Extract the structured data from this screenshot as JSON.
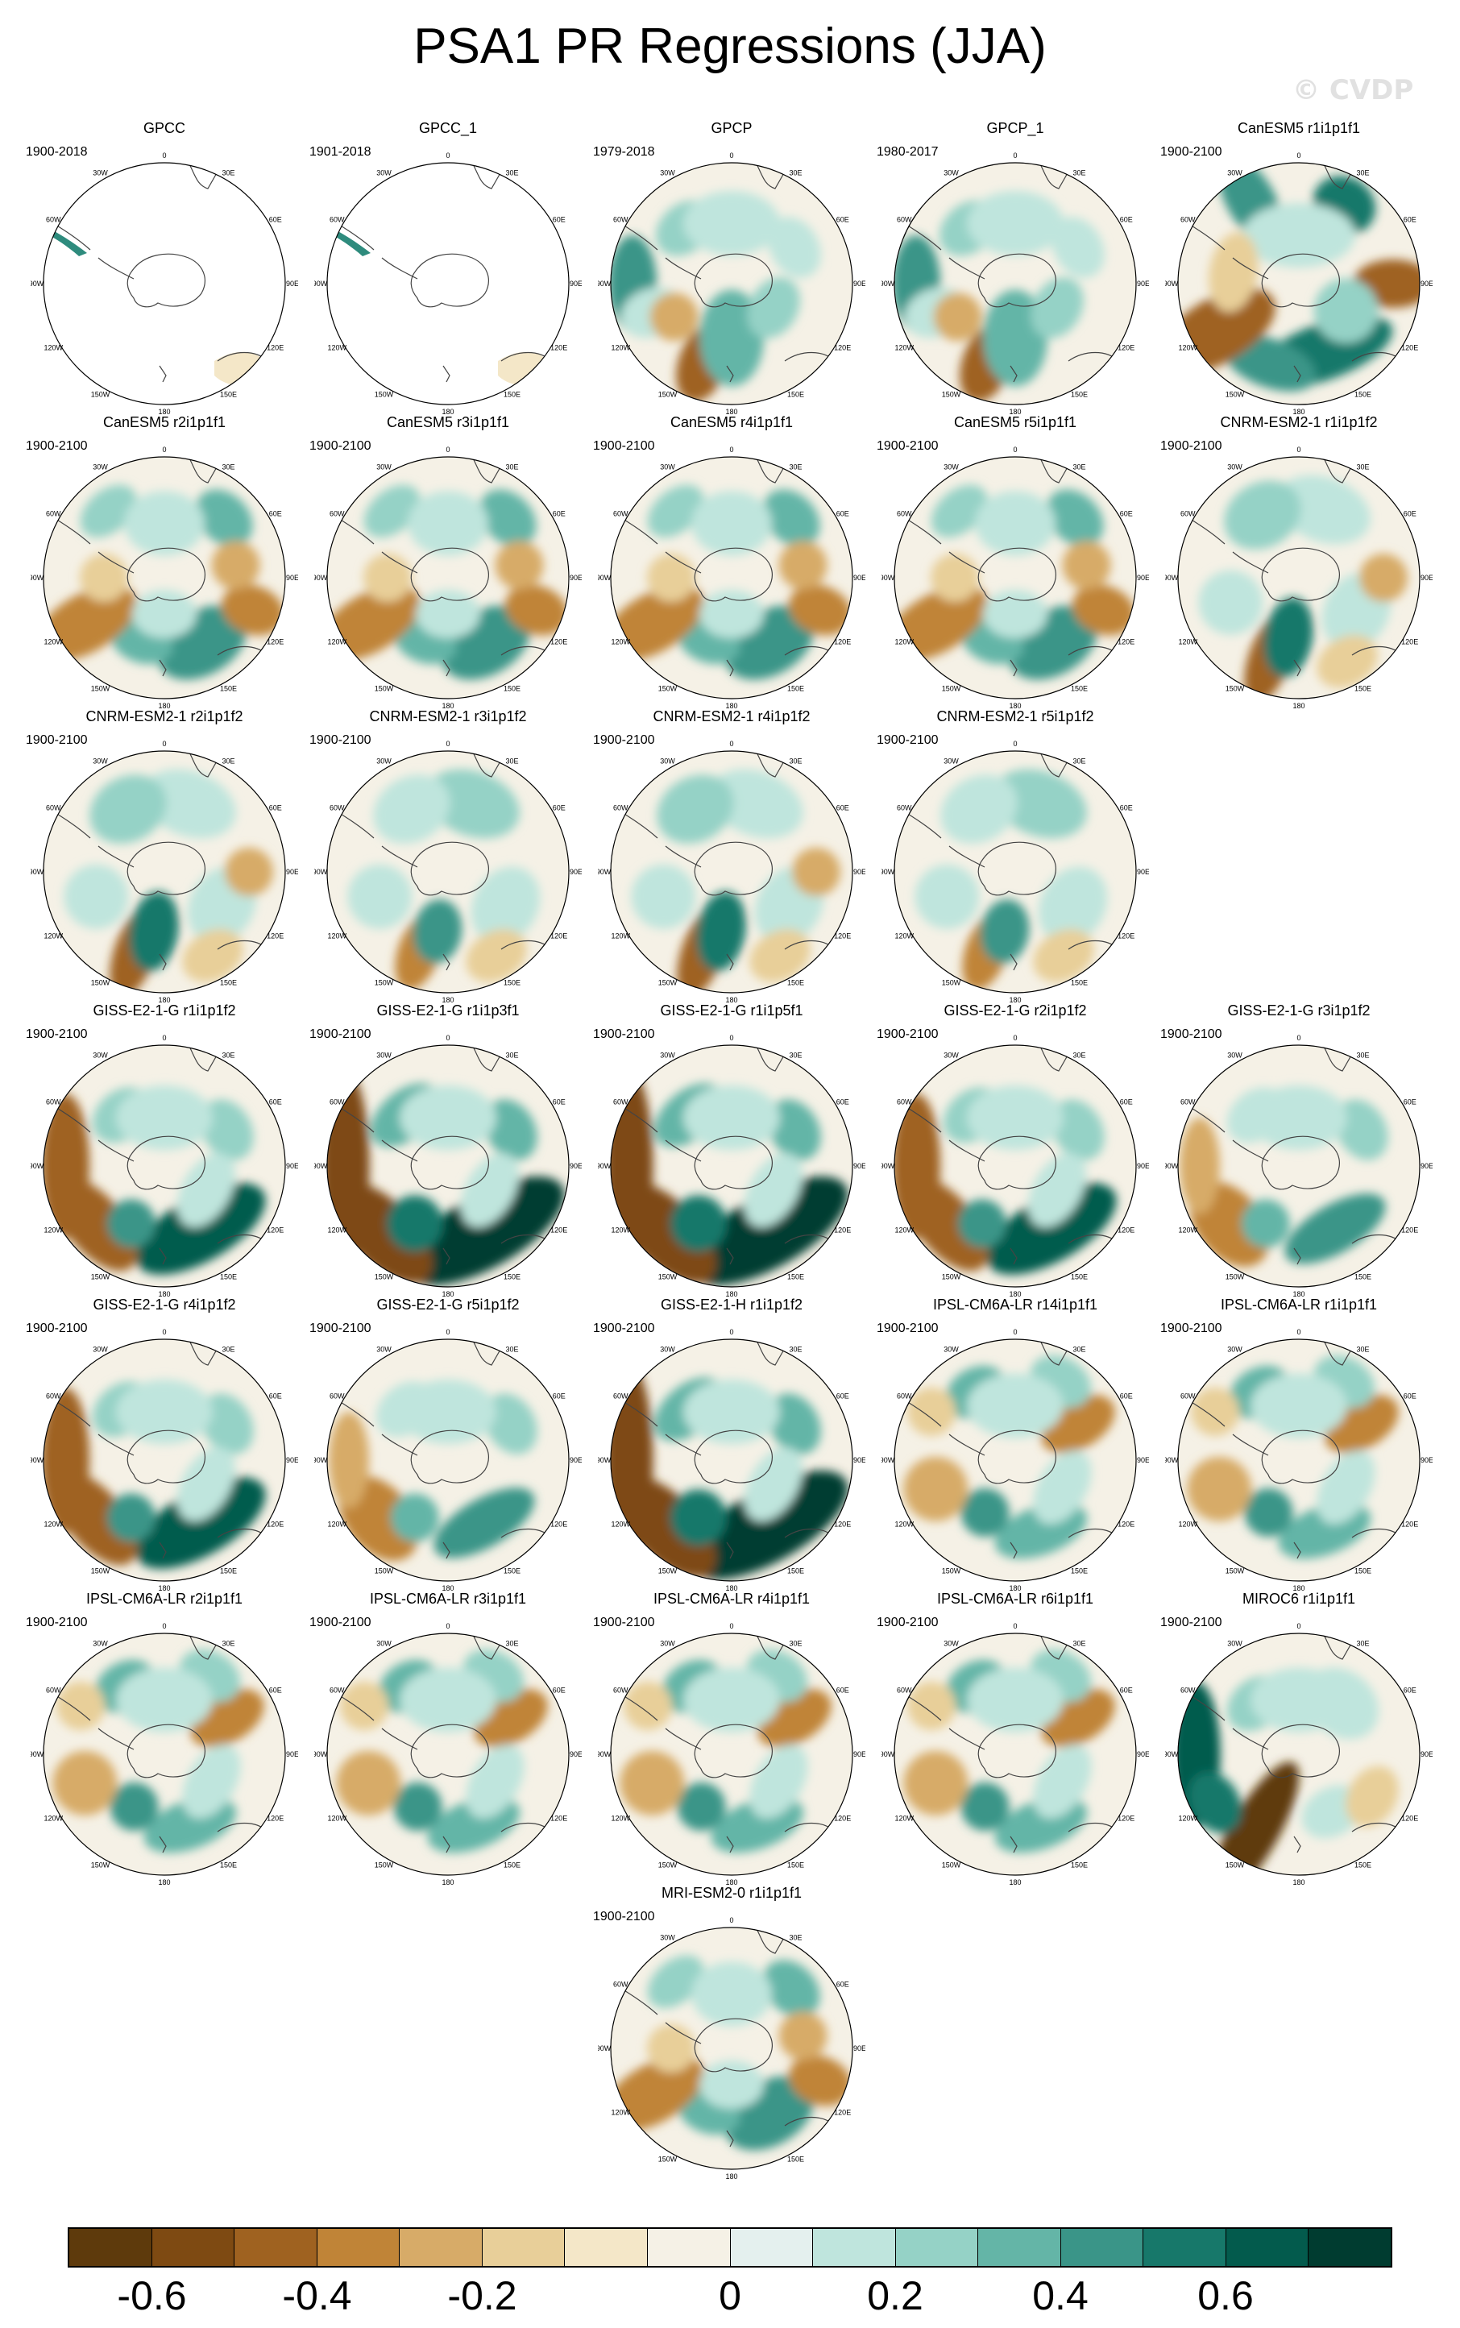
{
  "title": "PSA1 PR Regressions (JJA)",
  "watermark": "© CVDP",
  "tick_labels": {
    "top": "0",
    "top_right": "30E",
    "right_top": "60E",
    "right": "90E",
    "right_bottom": "120E",
    "bottom_right": "150E",
    "bottom": "180",
    "bottom_left": "150W",
    "left_bottom": "120W",
    "left": "90W",
    "left_top": "60W",
    "top_left": "30W"
  },
  "panels": [
    {
      "title": "GPCC",
      "years": "1900-2018",
      "style": "obs_land"
    },
    {
      "title": "GPCC_1",
      "years": "1901-2018",
      "style": "obs_land"
    },
    {
      "title": "GPCP",
      "years": "1979-2018",
      "style": "obs_full"
    },
    {
      "title": "GPCP_1",
      "years": "1980-2017",
      "style": "obs_full"
    },
    {
      "title": "CanESM5 r1i1p1f1",
      "years": "1900-2100",
      "style": "strong_ring"
    },
    {
      "title": "CanESM5 r2i1p1f1",
      "years": "1900-2100",
      "style": "ring"
    },
    {
      "title": "CanESM5 r3i1p1f1",
      "years": "1900-2100",
      "style": "ring"
    },
    {
      "title": "CanESM5 r4i1p1f1",
      "years": "1900-2100",
      "style": "ring"
    },
    {
      "title": "CanESM5 r5i1p1f1",
      "years": "1900-2100",
      "style": "ring"
    },
    {
      "title": "CNRM-ESM2-1 r1i1p1f2",
      "years": "1900-2100",
      "style": "cnrm"
    },
    {
      "title": "CNRM-ESM2-1 r2i1p1f2",
      "years": "1900-2100",
      "style": "cnrm"
    },
    {
      "title": "CNRM-ESM2-1 r3i1p1f2",
      "years": "1900-2100",
      "style": "cnrm_weak"
    },
    {
      "title": "CNRM-ESM2-1 r4i1p1f2",
      "years": "1900-2100",
      "style": "cnrm"
    },
    {
      "title": "CNRM-ESM2-1 r5i1p1f2",
      "years": "1900-2100",
      "style": "cnrm_weak"
    },
    {
      "title": "GISS-E2-1-G r1i1p1f2",
      "years": "1900-2100",
      "style": "giss"
    },
    {
      "title": "GISS-E2-1-G r1i1p3f1",
      "years": "1900-2100",
      "style": "giss_strong"
    },
    {
      "title": "GISS-E2-1-G r1i1p5f1",
      "years": "1900-2100",
      "style": "giss_strong"
    },
    {
      "title": "GISS-E2-1-G r2i1p1f2",
      "years": "1900-2100",
      "style": "giss"
    },
    {
      "title": "GISS-E2-1-G r3i1p1f2",
      "years": "1900-2100",
      "style": "giss_weak"
    },
    {
      "title": "GISS-E2-1-G r4i1p1f2",
      "years": "1900-2100",
      "style": "giss"
    },
    {
      "title": "GISS-E2-1-G r5i1p1f2",
      "years": "1900-2100",
      "style": "giss_weak"
    },
    {
      "title": "GISS-E2-1-H r1i1p1f2",
      "years": "1900-2100",
      "style": "giss_strong"
    },
    {
      "title": "IPSL-CM6A-LR r14i1p1f1",
      "years": "1900-2100",
      "style": "ipsl"
    },
    {
      "title": "IPSL-CM6A-LR r1i1p1f1",
      "years": "1900-2100",
      "style": "ipsl"
    },
    {
      "title": "IPSL-CM6A-LR r2i1p1f1",
      "years": "1900-2100",
      "style": "ipsl"
    },
    {
      "title": "IPSL-CM6A-LR r3i1p1f1",
      "years": "1900-2100",
      "style": "ipsl"
    },
    {
      "title": "IPSL-CM6A-LR r4i1p1f1",
      "years": "1900-2100",
      "style": "ipsl"
    },
    {
      "title": "IPSL-CM6A-LR r6i1p1f1",
      "years": "1900-2100",
      "style": "ipsl"
    },
    {
      "title": "MIROC6 r1i1p1f1",
      "years": "1900-2100",
      "style": "miroc"
    },
    {
      "title": "MRI-ESM2-0 r1i1p1f1",
      "years": "1900-2100",
      "style": "ring"
    }
  ],
  "colorbar": {
    "colors": [
      "#5e3a0c",
      "#7e4a12",
      "#9f6220",
      "#c08437",
      "#d7ab68",
      "#e8cf99",
      "#f4e7c8",
      "#f5f1e6",
      "#e4f0ee",
      "#bfe5dd",
      "#95d2c6",
      "#64b5a7",
      "#3a9588",
      "#17786a",
      "#035b4d",
      "#003c30"
    ],
    "labels": [
      "-0.6",
      "-0.4",
      "-0.2",
      "0",
      "0.2",
      "0.4",
      "0.6"
    ],
    "label_positions": [
      0.0625,
      0.1875,
      0.3125,
      0.5,
      0.625,
      0.75,
      0.875
    ]
  }
}
